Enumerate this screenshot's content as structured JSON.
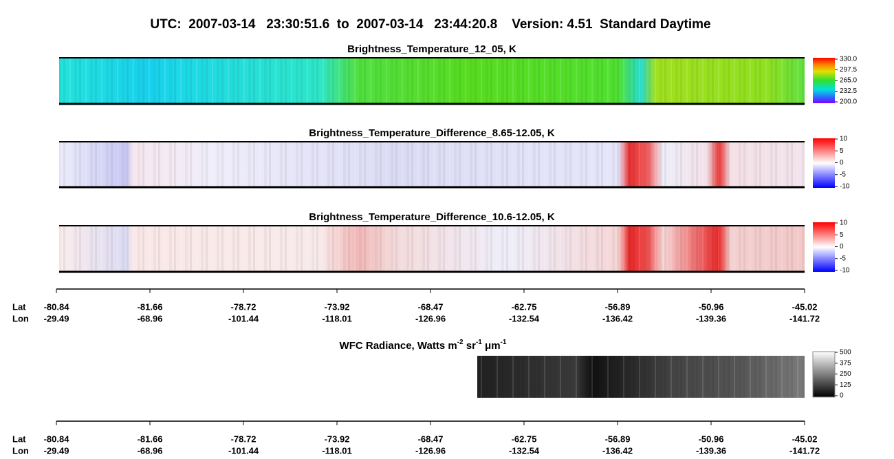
{
  "title": "UTC:  2007-03-14   23:30:51.6  to  2007-03-14   23:44:20.8    Version: 4.51  Standard Daytime",
  "panels": [
    {
      "title": "Brightness_Temperature_12_05, K",
      "colorbar": "rainbow",
      "ticks": [
        {
          "value": 330,
          "label": "330.0"
        },
        {
          "value": 297.5,
          "label": "297.5"
        },
        {
          "value": 265,
          "label": "265.0"
        },
        {
          "value": 232.5,
          "label": "232.5"
        },
        {
          "value": 200,
          "label": "200.0"
        }
      ]
    },
    {
      "title": "Brightness_Temperature_Difference_8.65-12.05, K",
      "colorbar": "bwr",
      "ticks": [
        10,
        5,
        0,
        -5,
        -10
      ]
    },
    {
      "title": "Brightness_Temperature_Difference_10.6-12.05, K",
      "colorbar": "bwr",
      "ticks": [
        10,
        5,
        0,
        -5,
        -10
      ]
    },
    {
      "title": [
        "WFC Radiance, Watts m",
        "-2",
        " sr",
        "-1",
        " μm",
        "-1"
      ],
      "colorbar": "gray",
      "ticks": [
        500,
        375,
        250,
        125,
        0
      ]
    }
  ],
  "axes": [
    {
      "lat_label": "Lat",
      "lon_label": "Lon",
      "lat": [
        -80.84,
        -81.66,
        -78.72,
        -73.92,
        -68.47,
        -62.75,
        -56.89,
        -50.96,
        -45.02
      ],
      "lon": [
        -29.49,
        -68.96,
        -101.44,
        -118.01,
        -126.96,
        -132.54,
        -136.42,
        -139.36,
        -141.72
      ]
    },
    {
      "lat_label": "Lat",
      "lon_label": "Lon",
      "lat": [
        -80.84,
        -81.66,
        -78.72,
        -73.92,
        -68.47,
        -62.75,
        -56.89,
        -50.96,
        -45.02
      ],
      "lon": [
        -29.49,
        -68.96,
        -101.44,
        -118.01,
        -126.96,
        -132.54,
        -136.42,
        -139.36,
        -141.72
      ]
    }
  ]
}
